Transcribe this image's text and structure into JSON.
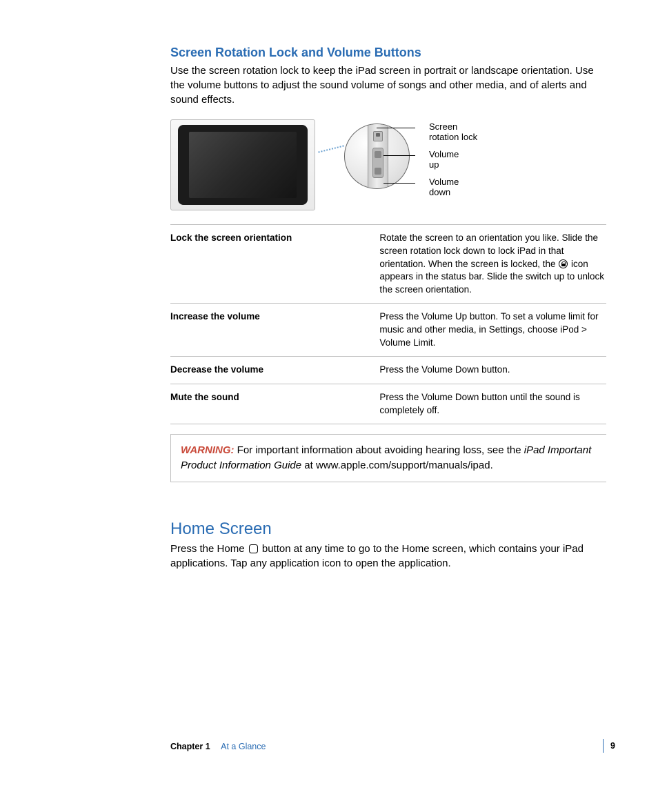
{
  "section1": {
    "heading": "Screen Rotation Lock and Volume Buttons",
    "intro": "Use the screen rotation lock to keep the iPad screen in portrait or landscape orientation. Use the volume buttons to adjust the sound volume of songs and other media, and of alerts and sound effects."
  },
  "diagram": {
    "callouts": {
      "lock_l1": "Screen",
      "lock_l2": "rotation lock",
      "volup_l1": "Volume",
      "volup_l2": "up",
      "voldown_l1": "Volume",
      "voldown_l2": "down"
    },
    "colors": {
      "heading_blue": "#2a6cb3",
      "warning_red": "#c94a3a",
      "rule_gray": "#bfbfbf",
      "dots_blue": "#6aa0d0",
      "ipad_black": "#1b1b1b"
    }
  },
  "table": {
    "rows": [
      {
        "label": "Lock the screen orientation",
        "desc_pre": "Rotate the screen to an orientation you like. Slide the screen rotation lock down to lock iPad in that orientation. When the screen is locked, the ",
        "desc_post": " icon appears in the status bar. Slide the switch up to unlock the screen orientation.",
        "has_lock_icon": true
      },
      {
        "label": "Increase the volume",
        "desc": "Press the Volume Up button. To set a volume limit for music and other media, in Settings, choose iPod > Volume Limit."
      },
      {
        "label": "Decrease the volume",
        "desc": "Press the Volume Down button."
      },
      {
        "label": "Mute the sound",
        "desc": "Press the Volume Down button until the sound is completely off."
      }
    ]
  },
  "warning": {
    "label": "WARNING:",
    "text_pre": "  For important information about avoiding hearing loss, see the ",
    "italic": "iPad Important Product Information Guide",
    "text_post": " at www.apple.com/support/manuals/ipad."
  },
  "section2": {
    "heading": "Home Screen",
    "text_pre": "Press the Home ",
    "text_post": " button at any time to go to the Home screen, which contains your iPad applications. Tap any application icon to open the application."
  },
  "footer": {
    "chapter": "Chapter 1",
    "title": "At a Glance",
    "page": "9"
  }
}
